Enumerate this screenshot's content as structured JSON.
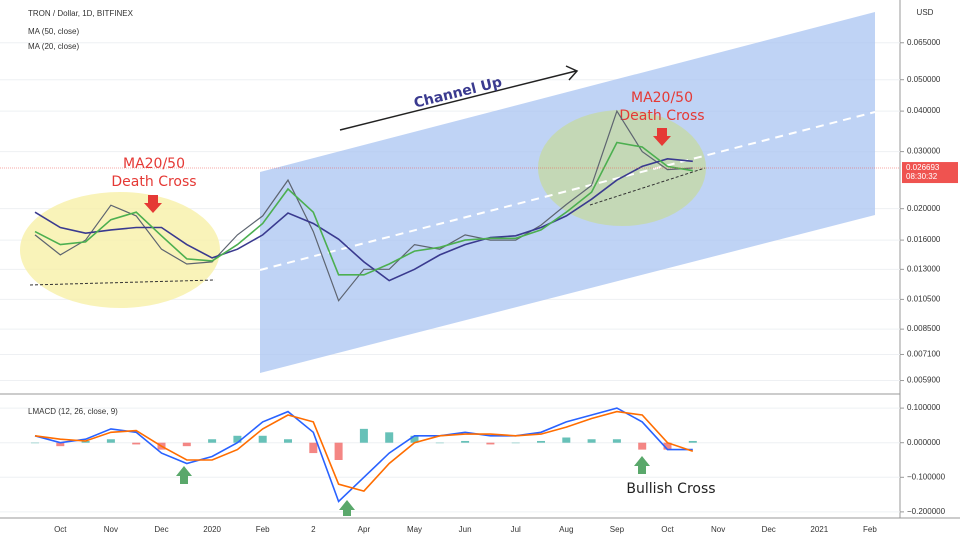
{
  "chart_data": [
    {
      "type": "line",
      "title": "TRON / Dollar, 1D, BITFINEX",
      "log_scale": true,
      "grid": true,
      "currency": "USD",
      "last_price": 0.026693,
      "countdown": "08:30:32",
      "last_price_color": "#ef5350",
      "categories": [
        null,
        "Oct",
        null,
        "Nov",
        null,
        "Dec",
        null,
        "2020",
        null,
        "Feb",
        null,
        "2",
        null,
        "Apr",
        null,
        "May",
        null,
        "Jun",
        null,
        "Jul",
        null,
        "Aug",
        null,
        "Sep",
        null,
        "Oct",
        null,
        "Nov",
        null,
        "Dec",
        null,
        "2021",
        null,
        "Feb"
      ],
      "series": [
        {
          "color": "#5d6470",
          "values": [
            0.0166,
            0.0144,
            0.016,
            0.0205,
            0.019,
            0.015,
            0.0135,
            0.0137,
            0.0166,
            0.019,
            0.0245,
            0.017,
            0.0104,
            0.013,
            0.013,
            0.0155,
            0.015,
            0.0166,
            0.016,
            0.016,
            0.0178,
            0.0206,
            0.0236,
            0.04,
            0.03,
            0.0264,
            0.0267,
            null,
            null,
            null,
            null,
            null,
            null,
            null
          ]
        },
        {
          "name": "MA (50, close)",
          "color": "#3a3a8f",
          "values": [
            0.0195,
            0.0175,
            0.0168,
            0.0172,
            0.0175,
            0.0175,
            0.0155,
            0.0141,
            0.015,
            0.0166,
            0.0194,
            0.018,
            0.0161,
            0.0137,
            0.012,
            0.013,
            0.0144,
            0.0155,
            0.0163,
            0.0165,
            0.0175,
            0.019,
            0.0214,
            0.0245,
            0.027,
            0.0285,
            0.028,
            null,
            null,
            null,
            null,
            null,
            null,
            null
          ]
        },
        {
          "name": "MA (20, close)",
          "color": "#4caf50",
          "values": [
            0.017,
            0.0155,
            0.0158,
            0.0185,
            0.0195,
            0.0165,
            0.014,
            0.0138,
            0.0155,
            0.018,
            0.023,
            0.0195,
            0.0125,
            0.0125,
            0.0135,
            0.0148,
            0.0152,
            0.016,
            0.0162,
            0.0162,
            0.0172,
            0.0195,
            0.0225,
            0.032,
            0.031,
            0.027,
            0.0262,
            null,
            null,
            null,
            null,
            null,
            null,
            null
          ]
        }
      ],
      "ylim": [
        0.0054,
        0.085
      ],
      "yticks": [
        {
          "value": 0.0059,
          "label": "0.005900"
        },
        {
          "value": 0.0071,
          "label": "0.007100"
        },
        {
          "value": 0.0085,
          "label": "0.008500"
        },
        {
          "value": 0.0105,
          "label": "0.010500"
        },
        {
          "value": 0.013,
          "label": "0.013000"
        },
        {
          "value": 0.016,
          "label": "0.016000"
        },
        {
          "value": 0.02,
          "label": "0.020000"
        },
        {
          "value": 0.03,
          "label": "0.030000"
        },
        {
          "value": 0.04,
          "label": "0.040000"
        },
        {
          "value": 0.05,
          "label": "0.050000"
        },
        {
          "value": 0.065,
          "label": "0.065000"
        }
      ],
      "annotations": [
        "Channel Up",
        "MA20/50",
        "Death Cross",
        "MA20/50",
        "Death Cross"
      ]
    },
    {
      "type": "line",
      "title": "LMACD (12, 26, close, 9)",
      "grid": true,
      "series": [
        {
          "kind": "histogram",
          "color": "#26a69a",
          "negative_color": "#ef5350",
          "values": [
            0,
            -0.01,
            0.005,
            0.01,
            -0.005,
            -0.02,
            -0.01,
            0.01,
            0.02,
            0.02,
            0.01,
            -0.03,
            -0.05,
            0.04,
            0.03,
            0.02,
            0,
            0.005,
            -0.005,
            0,
            0.005,
            0.015,
            0.01,
            0.01,
            -0.02,
            -0.02,
            0.005,
            null,
            null,
            null,
            null,
            null,
            null,
            null
          ]
        },
        {
          "color": "#2962ff",
          "values": [
            0.02,
            0,
            0.01,
            0.04,
            0.03,
            -0.03,
            -0.06,
            -0.04,
            0,
            0.06,
            0.09,
            0.03,
            -0.17,
            -0.1,
            -0.03,
            0.02,
            0.02,
            0.03,
            0.02,
            0.02,
            0.03,
            0.06,
            0.08,
            0.1,
            0.06,
            -0.02,
            -0.02,
            null,
            null,
            null,
            null,
            null,
            null,
            null
          ]
        },
        {
          "color": "#ff6d00",
          "values": [
            0.02,
            0.01,
            0.005,
            0.03,
            0.035,
            -0.01,
            -0.05,
            -0.05,
            -0.02,
            0.04,
            0.08,
            0.06,
            -0.12,
            -0.14,
            -0.06,
            0,
            0.02,
            0.025,
            0.025,
            0.02,
            0.025,
            0.045,
            0.07,
            0.09,
            0.08,
            0,
            -0.025,
            null,
            null,
            null,
            null,
            null,
            null,
            null
          ]
        }
      ],
      "ylim": [
        -0.209,
        0.135
      ],
      "yticks": [
        {
          "value": 0.1,
          "label": "0.100000"
        },
        {
          "value": 0,
          "label": "0.000000"
        },
        {
          "value": -0.1,
          "label": "−0.100000"
        },
        {
          "value": -0.2,
          "label": "−0.200000"
        }
      ],
      "annotations": [
        "Bullish Cross"
      ]
    }
  ]
}
